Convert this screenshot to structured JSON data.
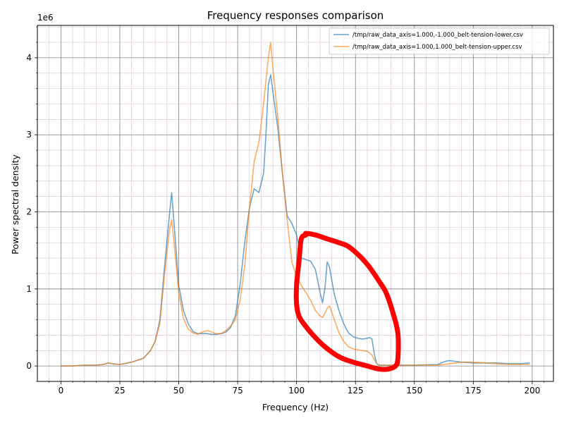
{
  "chart_data": {
    "type": "line",
    "title": "Frequency responses comparison",
    "xlabel": "Frequency (Hz)",
    "ylabel": "Power spectral density",
    "y_scale_label": "1e6",
    "xlim": [
      -10,
      209
    ],
    "ylim": [
      -0.2,
      4.42
    ],
    "x_ticks": [
      0,
      25,
      50,
      75,
      100,
      125,
      150,
      175,
      200
    ],
    "y_ticks": [
      0,
      1,
      2,
      3,
      4
    ],
    "grid": true,
    "legend_position": "top-right",
    "series": [
      {
        "name": "/tmp/raw_data_axis=1.000,-1.000_belt-tension-lower.csv",
        "color": "#1f77b4",
        "x": [
          0,
          5,
          10,
          15,
          18,
          20,
          22,
          25,
          30,
          35,
          38,
          40,
          42,
          44,
          46,
          47,
          48,
          50,
          52,
          54,
          56,
          58,
          60,
          62,
          64,
          66,
          68,
          70,
          72,
          74,
          76,
          78,
          80,
          82,
          84,
          86,
          87,
          88,
          89,
          90,
          92,
          94,
          96,
          98,
          100,
          102,
          104,
          106,
          108,
          110,
          111,
          112,
          113,
          114,
          115,
          116,
          118,
          120,
          122,
          124,
          126,
          128,
          130,
          131,
          132,
          133,
          134,
          135,
          140,
          150,
          160,
          163,
          165,
          170,
          175,
          180,
          185,
          190,
          195,
          199
        ],
        "values": [
          0.0,
          0.0,
          0.01,
          0.01,
          0.02,
          0.04,
          0.03,
          0.02,
          0.05,
          0.1,
          0.2,
          0.32,
          0.6,
          1.3,
          1.95,
          2.25,
          1.85,
          1.05,
          0.72,
          0.55,
          0.45,
          0.42,
          0.42,
          0.42,
          0.41,
          0.41,
          0.42,
          0.44,
          0.5,
          0.65,
          1.05,
          1.6,
          2.05,
          2.3,
          2.25,
          2.5,
          3.0,
          3.65,
          3.78,
          3.55,
          3.1,
          2.5,
          1.95,
          1.85,
          1.7,
          1.4,
          1.38,
          1.36,
          1.25,
          0.95,
          0.82,
          1.0,
          1.35,
          1.28,
          1.1,
          0.93,
          0.72,
          0.55,
          0.43,
          0.38,
          0.36,
          0.35,
          0.36,
          0.37,
          0.35,
          0.15,
          0.03,
          0.01,
          0.01,
          0.01,
          0.02,
          0.06,
          0.07,
          0.05,
          0.04,
          0.04,
          0.04,
          0.03,
          0.03,
          0.04
        ]
      },
      {
        "name": "/tmp/raw_data_axis=1.000,1.000_belt-tension-upper.csv",
        "color": "#ff7f0e",
        "x": [
          0,
          5,
          10,
          15,
          18,
          20,
          22,
          25,
          30,
          35,
          38,
          40,
          42,
          44,
          46,
          47,
          48,
          50,
          52,
          54,
          56,
          58,
          60,
          62,
          64,
          66,
          68,
          70,
          72,
          74,
          76,
          78,
          80,
          82,
          84,
          86,
          87,
          88,
          89,
          90,
          92,
          94,
          96,
          98,
          100,
          102,
          104,
          106,
          108,
          110,
          111,
          112,
          113,
          114,
          116,
          118,
          120,
          122,
          124,
          126,
          128,
          130,
          131,
          132,
          133,
          134,
          135,
          140,
          150,
          160,
          165,
          170,
          175,
          180,
          185,
          190,
          195,
          199
        ],
        "values": [
          0.0,
          0.0,
          0.01,
          0.01,
          0.02,
          0.04,
          0.03,
          0.02,
          0.05,
          0.1,
          0.2,
          0.32,
          0.55,
          1.2,
          1.75,
          1.9,
          1.6,
          0.95,
          0.62,
          0.48,
          0.43,
          0.41,
          0.44,
          0.46,
          0.44,
          0.42,
          0.42,
          0.46,
          0.52,
          0.6,
          0.85,
          1.3,
          2.05,
          2.65,
          2.9,
          3.4,
          3.7,
          4.0,
          4.2,
          3.85,
          3.25,
          2.5,
          1.9,
          1.35,
          1.15,
          1.05,
          0.95,
          0.85,
          0.72,
          0.65,
          0.63,
          0.68,
          0.75,
          0.78,
          0.6,
          0.43,
          0.32,
          0.25,
          0.22,
          0.21,
          0.2,
          0.19,
          0.17,
          0.14,
          0.08,
          0.03,
          0.01,
          0.01,
          0.01,
          0.01,
          0.03,
          0.05,
          0.05,
          0.04,
          0.03,
          0.02,
          0.02,
          0.02
        ]
      }
    ],
    "annotation": {
      "kind": "hand-drawn-loop",
      "color": "#ff0000",
      "x": [
        104,
        102,
        101,
        100,
        100,
        101,
        103,
        107,
        112,
        118,
        124,
        130,
        135,
        139,
        142,
        143,
        143,
        141,
        138,
        135,
        131,
        127,
        122,
        118,
        113,
        108,
        104
      ],
      "values": [
        1.7,
        1.65,
        1.35,
        1.05,
        0.8,
        0.65,
        0.55,
        0.4,
        0.25,
        0.12,
        0.05,
        0.0,
        -0.04,
        -0.04,
        0.0,
        0.1,
        0.42,
        0.68,
        0.95,
        1.1,
        1.28,
        1.42,
        1.55,
        1.6,
        1.65,
        1.7,
        1.72
      ]
    }
  }
}
